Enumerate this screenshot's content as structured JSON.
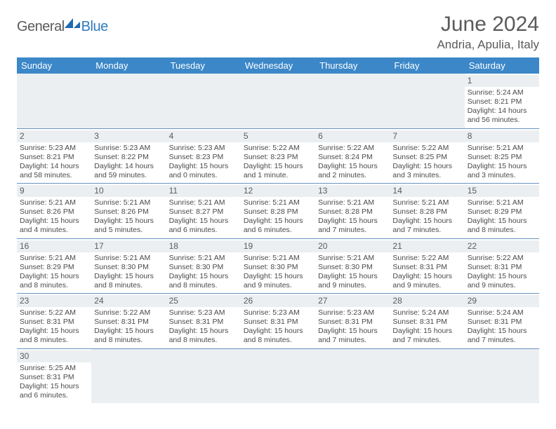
{
  "logo": {
    "part1": "General",
    "part2": "Blue"
  },
  "title": "June 2024",
  "location": "Andria, Apulia, Italy",
  "weekdays": [
    "Sunday",
    "Monday",
    "Tuesday",
    "Wednesday",
    "Thursday",
    "Friday",
    "Saturday"
  ],
  "colors": {
    "header_bg": "#3b87c8",
    "header_text": "#ffffff",
    "daynum_bg": "#eceff1",
    "border": "#6a94c0",
    "logo_gray": "#5a5a5a",
    "logo_blue": "#2f7bbf"
  },
  "days": {
    "1": {
      "sunrise": "5:24 AM",
      "sunset": "8:21 PM",
      "daylight": "14 hours and 56 minutes."
    },
    "2": {
      "sunrise": "5:23 AM",
      "sunset": "8:21 PM",
      "daylight": "14 hours and 58 minutes."
    },
    "3": {
      "sunrise": "5:23 AM",
      "sunset": "8:22 PM",
      "daylight": "14 hours and 59 minutes."
    },
    "4": {
      "sunrise": "5:23 AM",
      "sunset": "8:23 PM",
      "daylight": "15 hours and 0 minutes."
    },
    "5": {
      "sunrise": "5:22 AM",
      "sunset": "8:23 PM",
      "daylight": "15 hours and 1 minute."
    },
    "6": {
      "sunrise": "5:22 AM",
      "sunset": "8:24 PM",
      "daylight": "15 hours and 2 minutes."
    },
    "7": {
      "sunrise": "5:22 AM",
      "sunset": "8:25 PM",
      "daylight": "15 hours and 3 minutes."
    },
    "8": {
      "sunrise": "5:21 AM",
      "sunset": "8:25 PM",
      "daylight": "15 hours and 3 minutes."
    },
    "9": {
      "sunrise": "5:21 AM",
      "sunset": "8:26 PM",
      "daylight": "15 hours and 4 minutes."
    },
    "10": {
      "sunrise": "5:21 AM",
      "sunset": "8:26 PM",
      "daylight": "15 hours and 5 minutes."
    },
    "11": {
      "sunrise": "5:21 AM",
      "sunset": "8:27 PM",
      "daylight": "15 hours and 6 minutes."
    },
    "12": {
      "sunrise": "5:21 AM",
      "sunset": "8:28 PM",
      "daylight": "15 hours and 6 minutes."
    },
    "13": {
      "sunrise": "5:21 AM",
      "sunset": "8:28 PM",
      "daylight": "15 hours and 7 minutes."
    },
    "14": {
      "sunrise": "5:21 AM",
      "sunset": "8:28 PM",
      "daylight": "15 hours and 7 minutes."
    },
    "15": {
      "sunrise": "5:21 AM",
      "sunset": "8:29 PM",
      "daylight": "15 hours and 8 minutes."
    },
    "16": {
      "sunrise": "5:21 AM",
      "sunset": "8:29 PM",
      "daylight": "15 hours and 8 minutes."
    },
    "17": {
      "sunrise": "5:21 AM",
      "sunset": "8:30 PM",
      "daylight": "15 hours and 8 minutes."
    },
    "18": {
      "sunrise": "5:21 AM",
      "sunset": "8:30 PM",
      "daylight": "15 hours and 8 minutes."
    },
    "19": {
      "sunrise": "5:21 AM",
      "sunset": "8:30 PM",
      "daylight": "15 hours and 9 minutes."
    },
    "20": {
      "sunrise": "5:21 AM",
      "sunset": "8:30 PM",
      "daylight": "15 hours and 9 minutes."
    },
    "21": {
      "sunrise": "5:22 AM",
      "sunset": "8:31 PM",
      "daylight": "15 hours and 9 minutes."
    },
    "22": {
      "sunrise": "5:22 AM",
      "sunset": "8:31 PM",
      "daylight": "15 hours and 9 minutes."
    },
    "23": {
      "sunrise": "5:22 AM",
      "sunset": "8:31 PM",
      "daylight": "15 hours and 8 minutes."
    },
    "24": {
      "sunrise": "5:22 AM",
      "sunset": "8:31 PM",
      "daylight": "15 hours and 8 minutes."
    },
    "25": {
      "sunrise": "5:23 AM",
      "sunset": "8:31 PM",
      "daylight": "15 hours and 8 minutes."
    },
    "26": {
      "sunrise": "5:23 AM",
      "sunset": "8:31 PM",
      "daylight": "15 hours and 8 minutes."
    },
    "27": {
      "sunrise": "5:23 AM",
      "sunset": "8:31 PM",
      "daylight": "15 hours and 7 minutes."
    },
    "28": {
      "sunrise": "5:24 AM",
      "sunset": "8:31 PM",
      "daylight": "15 hours and 7 minutes."
    },
    "29": {
      "sunrise": "5:24 AM",
      "sunset": "8:31 PM",
      "daylight": "15 hours and 7 minutes."
    },
    "30": {
      "sunrise": "5:25 AM",
      "sunset": "8:31 PM",
      "daylight": "15 hours and 6 minutes."
    }
  },
  "labels": {
    "sunrise": "Sunrise: ",
    "sunset": "Sunset: ",
    "daylight": "Daylight: "
  },
  "grid": [
    [
      0,
      0,
      0,
      0,
      0,
      0,
      1
    ],
    [
      2,
      3,
      4,
      5,
      6,
      7,
      8
    ],
    [
      9,
      10,
      11,
      12,
      13,
      14,
      15
    ],
    [
      16,
      17,
      18,
      19,
      20,
      21,
      22
    ],
    [
      23,
      24,
      25,
      26,
      27,
      28,
      29
    ],
    [
      30,
      0,
      0,
      0,
      0,
      0,
      0
    ]
  ]
}
